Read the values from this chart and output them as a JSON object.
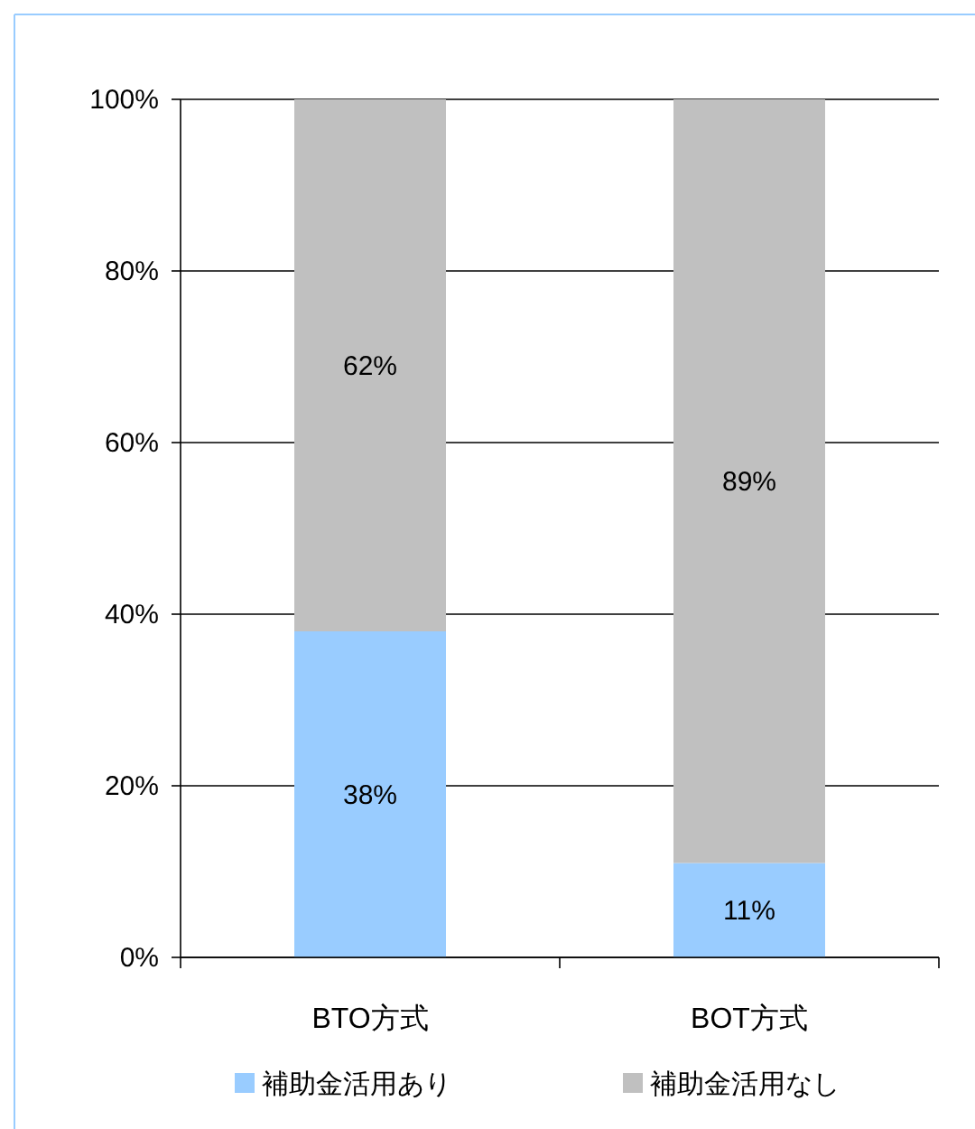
{
  "chart_data": {
    "type": "bar",
    "stacked": true,
    "categories": [
      "BTO方式",
      "BOT方式"
    ],
    "series": [
      {
        "name": "補助金活用あり",
        "color": "#99ccff",
        "values": [
          38,
          11
        ],
        "value_labels": [
          "38%",
          "11%"
        ]
      },
      {
        "name": "補助金活用なし",
        "color": "#c0c0c0",
        "values": [
          62,
          89
        ],
        "value_labels": [
          "62%",
          "89%"
        ]
      }
    ],
    "ylim": [
      0,
      100
    ],
    "yticks": [
      {
        "value": 0,
        "label": "0%"
      },
      {
        "value": 20,
        "label": "20%"
      },
      {
        "value": 40,
        "label": "40%"
      },
      {
        "value": 60,
        "label": "60%"
      },
      {
        "value": 80,
        "label": "80%"
      },
      {
        "value": 100,
        "label": "100%"
      }
    ],
    "grid": "y",
    "legend": "bottom"
  }
}
